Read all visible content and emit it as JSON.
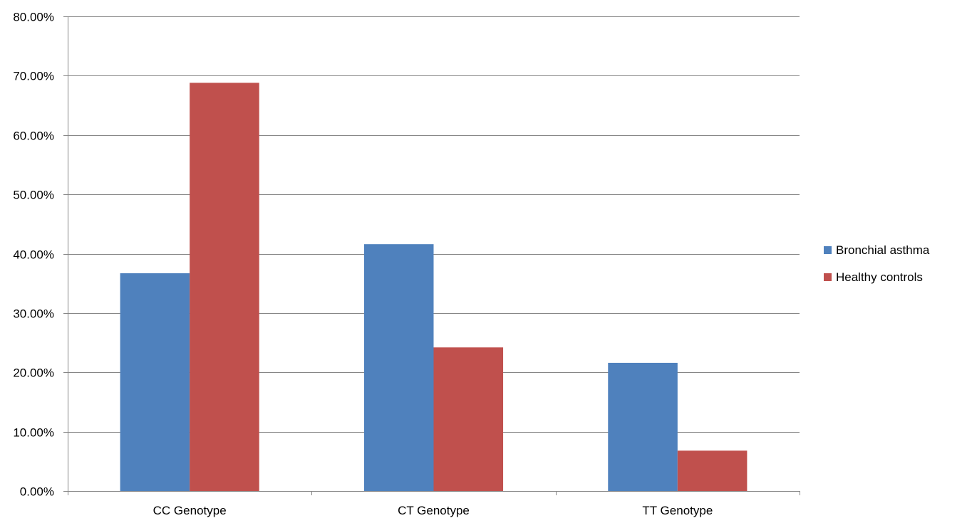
{
  "chart_data": {
    "type": "bar",
    "title": "",
    "xlabel": "",
    "ylabel": "",
    "categories": [
      "CC Genotype",
      "CT Genotype",
      "TT Genotype"
    ],
    "series": [
      {
        "name": "Bronchial asthma",
        "color": "#4F81BD",
        "values": [
          36.7,
          41.6,
          21.6
        ]
      },
      {
        "name": "Healthy controls",
        "color": "#C0504D",
        "values": [
          68.8,
          24.2,
          6.8
        ]
      }
    ],
    "ylim": [
      0,
      80
    ],
    "yticks": [
      0,
      10,
      20,
      30,
      40,
      50,
      60,
      70,
      80
    ],
    "ytick_labels": [
      "0.00%",
      "10.00%",
      "20.00%",
      "30.00%",
      "40.00%",
      "50.00%",
      "60.00%",
      "70.00%",
      "80.00%"
    ],
    "grid": true,
    "legend_position": "right"
  }
}
